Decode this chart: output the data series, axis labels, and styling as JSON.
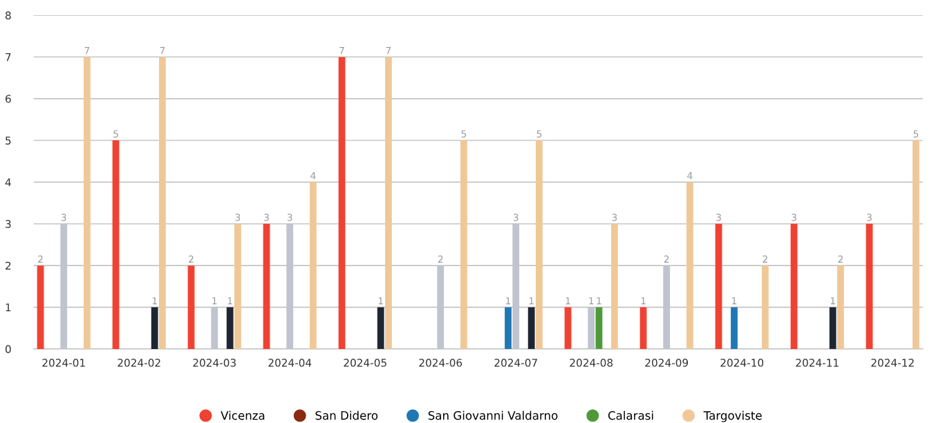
{
  "chart_data": {
    "type": "bar",
    "categories": [
      "2024-01",
      "2024-02",
      "2024-03",
      "2024-04",
      "2024-05",
      "2024-06",
      "2024-07",
      "2024-08",
      "2024-09",
      "2024-10",
      "2024-11",
      "2024-12"
    ],
    "series": [
      {
        "name": "Vicenza",
        "color": "#f04232",
        "values": [
          2,
          5,
          2,
          3,
          7,
          null,
          null,
          1,
          1,
          3,
          3,
          3
        ]
      },
      {
        "name": "San Didero",
        "color": "#8b2a0e",
        "values": [
          null,
          null,
          null,
          null,
          null,
          null,
          null,
          null,
          null,
          null,
          null,
          null
        ]
      },
      {
        "name": "San Giovanni Valdarno",
        "color": "#1f78b4",
        "values": [
          null,
          null,
          null,
          null,
          null,
          null,
          1,
          null,
          null,
          1,
          null,
          null
        ]
      },
      {
        "color": "#c0c4ce",
        "values": [
          3,
          null,
          1,
          3,
          null,
          2,
          3,
          1,
          2,
          null,
          null,
          null
        ]
      },
      {
        "name": "Calarasi",
        "color": "#4e9a3a",
        "values": [
          null,
          null,
          null,
          null,
          null,
          null,
          null,
          1,
          null,
          null,
          null,
          null
        ]
      },
      {
        "color": "#1e2633",
        "values": [
          null,
          1,
          1,
          null,
          1,
          null,
          1,
          null,
          null,
          null,
          1,
          null
        ]
      },
      {
        "name": "Targoviste",
        "color": "#f0c898",
        "values": [
          7,
          7,
          3,
          4,
          7,
          5,
          5,
          3,
          4,
          2,
          2,
          5
        ]
      }
    ],
    "ylim": [
      0,
      8
    ],
    "yticks": [
      0,
      1,
      2,
      3,
      4,
      5,
      6,
      7,
      8
    ],
    "grid": "y",
    "legend": "bottom",
    "data_labels": true
  }
}
